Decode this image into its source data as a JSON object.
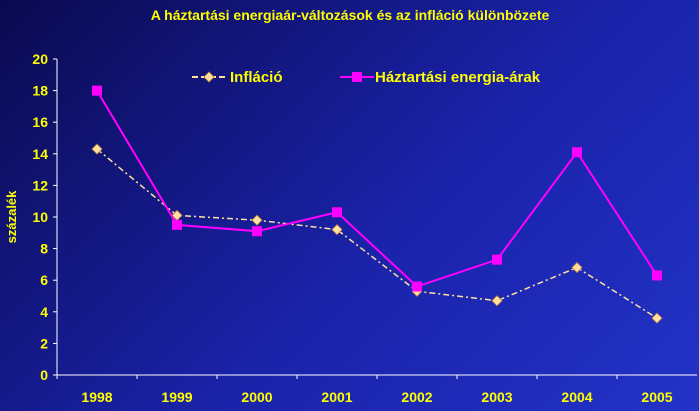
{
  "chart_data": {
    "type": "line",
    "title": "A háztartási energiaár-változások és az infláció különbözete",
    "xlabel": "",
    "ylabel": "százalék",
    "ylim": [
      0,
      20
    ],
    "yticks": [
      0,
      2,
      4,
      6,
      8,
      10,
      12,
      14,
      16,
      18,
      20
    ],
    "categories": [
      "1998",
      "1999",
      "2000",
      "2001",
      "2002",
      "2003",
      "2004",
      "2005"
    ],
    "legend_position": "top",
    "series": [
      {
        "name": "Infláció",
        "color": "#ffe0a0",
        "marker": "diamond",
        "dash": true,
        "values": [
          14.3,
          10.1,
          9.8,
          9.2,
          5.3,
          4.7,
          6.8,
          3.6
        ]
      },
      {
        "name": "Háztartási energia-árak",
        "color": "#ff00ff",
        "marker": "square",
        "dash": false,
        "values": [
          18.0,
          9.5,
          9.1,
          10.3,
          5.6,
          7.3,
          14.1,
          6.3
        ]
      }
    ]
  }
}
